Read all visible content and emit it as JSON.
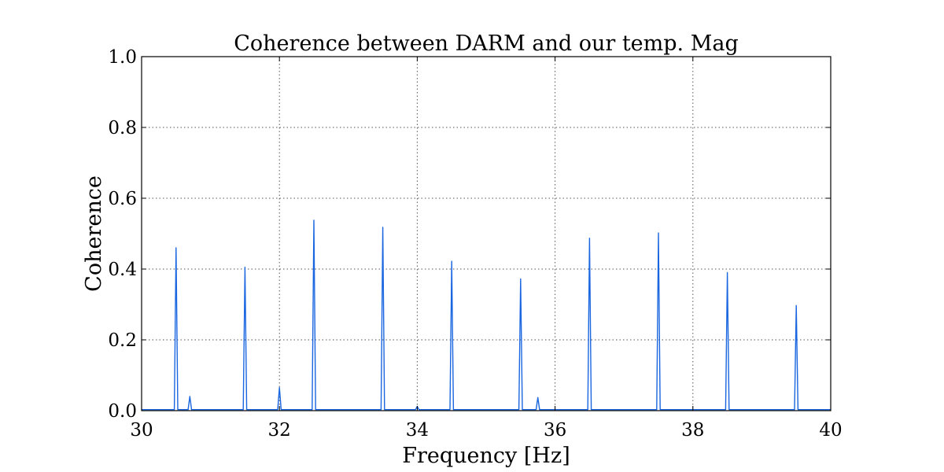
{
  "chart_data": {
    "type": "line",
    "title": "Coherence between DARM and our temp. Mag",
    "xlabel": "Frequency [Hz]",
    "ylabel": "Coherence",
    "xlim": [
      30,
      40
    ],
    "ylim": [
      0,
      1.0
    ],
    "x_ticks": [
      "30",
      "32",
      "34",
      "36",
      "38",
      "40"
    ],
    "y_ticks": [
      "0.0",
      "0.2",
      "0.4",
      "0.6",
      "0.8",
      "1.0"
    ],
    "grid": true,
    "legend": "none",
    "baseline": 0.003,
    "series": [
      {
        "color": "#1a66e0",
        "peaks": [
          {
            "x": 30.5,
            "y": 0.46
          },
          {
            "x": 30.7,
            "y": 0.04
          },
          {
            "x": 31.5,
            "y": 0.405
          },
          {
            "x": 32.0,
            "y": 0.065
          },
          {
            "x": 32.5,
            "y": 0.538
          },
          {
            "x": 33.5,
            "y": 0.518
          },
          {
            "x": 34.0,
            "y": 0.012
          },
          {
            "x": 34.5,
            "y": 0.422
          },
          {
            "x": 35.5,
            "y": 0.372
          },
          {
            "x": 35.75,
            "y": 0.037
          },
          {
            "x": 36.5,
            "y": 0.487
          },
          {
            "x": 37.5,
            "y": 0.502
          },
          {
            "x": 38.5,
            "y": 0.39
          },
          {
            "x": 39.5,
            "y": 0.297
          }
        ]
      }
    ]
  }
}
